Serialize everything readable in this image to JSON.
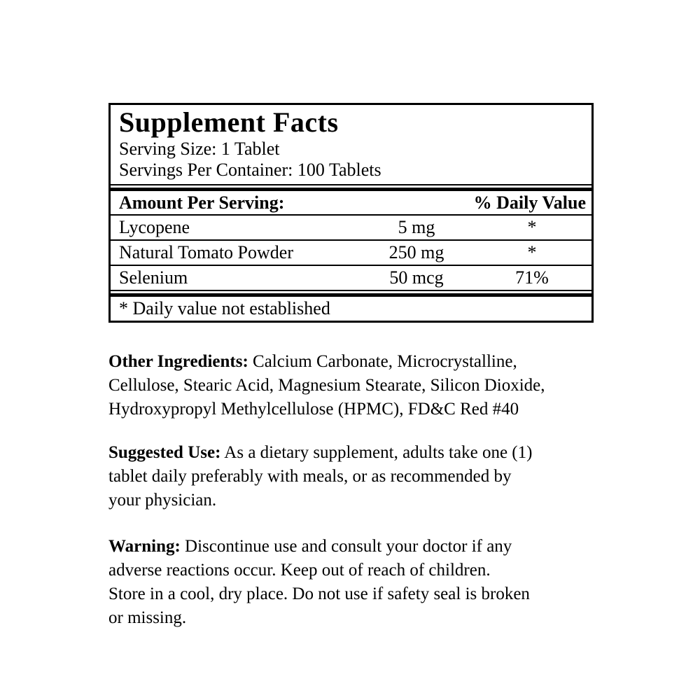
{
  "facts": {
    "title": "Supplement Facts",
    "serving_size": "Serving Size: 1 Tablet",
    "servings_per_container": "Servings Per Container: 100 Tablets",
    "columns": {
      "amount_header": "Amount Per Serving:",
      "dv_header": "% Daily Value"
    },
    "rows": [
      {
        "name": "Lycopene",
        "amount": "5 mg",
        "daily_value": "*"
      },
      {
        "name": "Natural Tomato Powder",
        "amount": "250 mg",
        "daily_value": "*"
      },
      {
        "name": "Selenium",
        "amount": "50 mcg",
        "daily_value": "71%"
      }
    ],
    "footnote": "* Daily value not established"
  },
  "paragraphs": [
    {
      "label": "Other Ingredients:",
      "text": " Calcium Carbonate, Microcrystalline,\nCellulose, Stearic Acid, Magnesium Stearate, Silicon Dioxide,\nHydroxypropyl Methylcellulose (HPMC), FD&C Red #40"
    },
    {
      "label": "Suggested Use:",
      "text": " As a dietary supplement, adults take one (1)\ntablet daily preferably with meals, or as recommended by\nyour physician."
    },
    {
      "label": "Warning:",
      "text": " Discontinue use and consult your doctor if any\nadverse reactions occur. Keep out of reach of children.\nStore in a cool, dry place. Do not use if safety seal is broken\nor missing."
    }
  ],
  "colors": {
    "text": "#000000",
    "background": "#ffffff",
    "border": "#000000"
  }
}
